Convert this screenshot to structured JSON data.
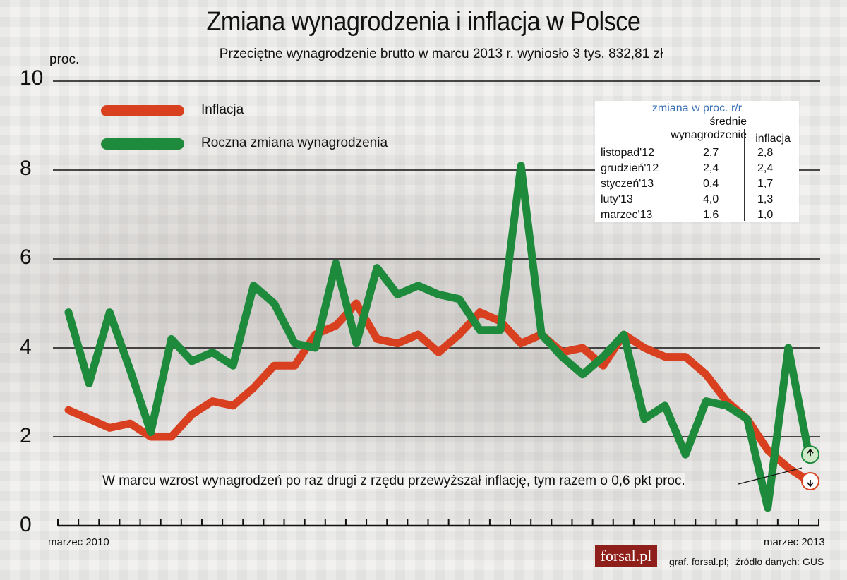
{
  "title": "Zmiana wynagrodzenia i inflacja w Polsce",
  "subtitle": "Przeciętne wynagrodzenie brutto w marcu 2013 r. wyniosło 3 tys. 832,81 zł",
  "y_unit": "proc.",
  "y_ticks": [
    "10",
    "8",
    "6",
    "4",
    "2",
    "0"
  ],
  "x_start_label": "marzec 2010",
  "x_end_label": "marzec 2013",
  "legend": {
    "inflation_label": "Inflacja",
    "wages_label": "Roczna zmiana wynagrodzenia"
  },
  "annotation": "W marcu wzrost wynagrodzeń po raz drugi z rzędu przewyższał inflację, tym razem o 0,6 pkt proc.",
  "table": {
    "title": "zmiana w proc. r/r",
    "header_wages_line1": "średnie",
    "header_wages_line2": "wynagrodzenie",
    "header_inflation": "inflacja",
    "rows": [
      {
        "label": "listopad'12",
        "wages": "2,7",
        "inflation": "2,8"
      },
      {
        "label": "grudzień'12",
        "wages": "2,4",
        "inflation": "2,4"
      },
      {
        "label": "styczeń'13",
        "wages": "0,4",
        "inflation": "1,7"
      },
      {
        "label": "luty'13",
        "wages": "4,0",
        "inflation": "1,3"
      },
      {
        "label": "marzec'13",
        "wages": "1,6",
        "inflation": "1,0"
      }
    ]
  },
  "logo": "forsal.pl",
  "credit_graphic": "graf. forsal.pl;",
  "credit_source": "źródło danych: GUS",
  "colors": {
    "inflation": "#d9401f",
    "wages": "#1e8a3c"
  },
  "chart_data": {
    "type": "line",
    "title": "Zmiana wynagrodzenia i inflacja w Polsce",
    "ylabel": "proc.",
    "ylim": [
      0,
      10
    ],
    "yticks": [
      0,
      2,
      4,
      6,
      8,
      10
    ],
    "grid": true,
    "legend_position": "top-left",
    "x_first_label": "marzec 2010",
    "x_last_label": "marzec 2013",
    "x": [
      "03.2010",
      "04.2010",
      "05.2010",
      "06.2010",
      "07.2010",
      "08.2010",
      "09.2010",
      "10.2010",
      "11.2010",
      "12.2010",
      "01.2011",
      "02.2011",
      "03.2011",
      "04.2011",
      "05.2011",
      "06.2011",
      "07.2011",
      "08.2011",
      "09.2011",
      "10.2011",
      "11.2011",
      "12.2011",
      "01.2012",
      "02.2012",
      "03.2012",
      "04.2012",
      "05.2012",
      "06.2012",
      "07.2012",
      "08.2012",
      "09.2012",
      "10.2012",
      "11.2012",
      "12.2012",
      "01.2013",
      "02.2013",
      "03.2013"
    ],
    "series": [
      {
        "name": "Inflacja",
        "values": [
          2.6,
          2.4,
          2.2,
          2.3,
          2.0,
          2.0,
          2.5,
          2.8,
          2.7,
          3.1,
          3.6,
          3.6,
          4.3,
          4.5,
          5.0,
          4.2,
          4.1,
          4.3,
          3.9,
          4.3,
          4.8,
          4.6,
          4.1,
          4.3,
          3.9,
          4.0,
          3.6,
          4.3,
          4.0,
          3.8,
          3.8,
          3.4,
          2.8,
          2.4,
          1.7,
          1.3,
          1.0
        ]
      },
      {
        "name": "Roczna zmiana wynagrodzenia",
        "values": [
          4.8,
          3.2,
          4.8,
          3.5,
          2.1,
          4.2,
          3.7,
          3.9,
          3.6,
          5.4,
          5.0,
          4.1,
          4.0,
          5.9,
          4.1,
          5.8,
          5.2,
          5.4,
          5.2,
          5.1,
          4.4,
          4.4,
          8.1,
          4.3,
          3.8,
          3.4,
          3.8,
          4.3,
          2.4,
          2.7,
          1.6,
          2.8,
          2.7,
          2.4,
          0.4,
          4.0,
          1.6
        ]
      }
    ]
  }
}
